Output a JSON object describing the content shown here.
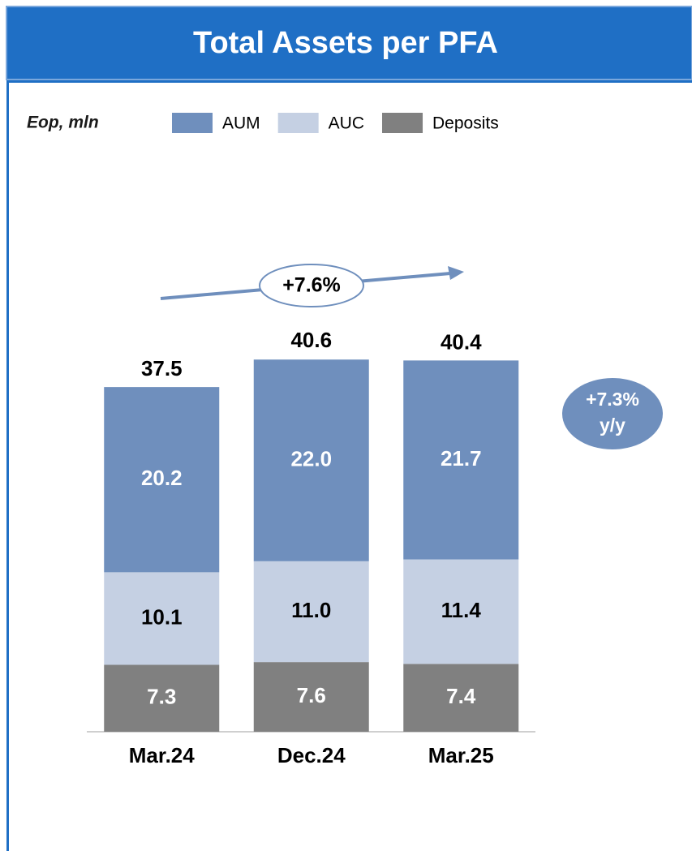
{
  "chart_data": {
    "type": "stacked_bar",
    "title": "Total Assets per PFA",
    "unit_label": "Eop, mln",
    "categories": [
      "Mar.24",
      "Dec.24",
      "Mar.25"
    ],
    "series": [
      {
        "name": "Deposits",
        "color": "#808080",
        "values": [
          7.3,
          7.6,
          7.4
        ],
        "label_color": "#ffffff"
      },
      {
        "name": "AUC",
        "color": "#c5d0e3",
        "values": [
          10.1,
          11.0,
          11.4
        ],
        "value_labels": [
          "10.1",
          "11.0",
          "11.4"
        ],
        "label_color": "#000000"
      },
      {
        "name": "AUM",
        "color": "#6f8fbd",
        "values": [
          20.2,
          22.0,
          21.7
        ],
        "value_labels": [
          "20.2",
          "22.0",
          "21.7"
        ],
        "label_color": "#ffffff"
      }
    ],
    "legend_order": [
      2,
      1,
      0
    ],
    "totals": [
      37.5,
      40.6,
      40.4
    ],
    "ylim": [
      0,
      45
    ],
    "annotations": {
      "growth": "+7.6%",
      "yoy": [
        "+7.3%",
        "y/y"
      ]
    }
  }
}
